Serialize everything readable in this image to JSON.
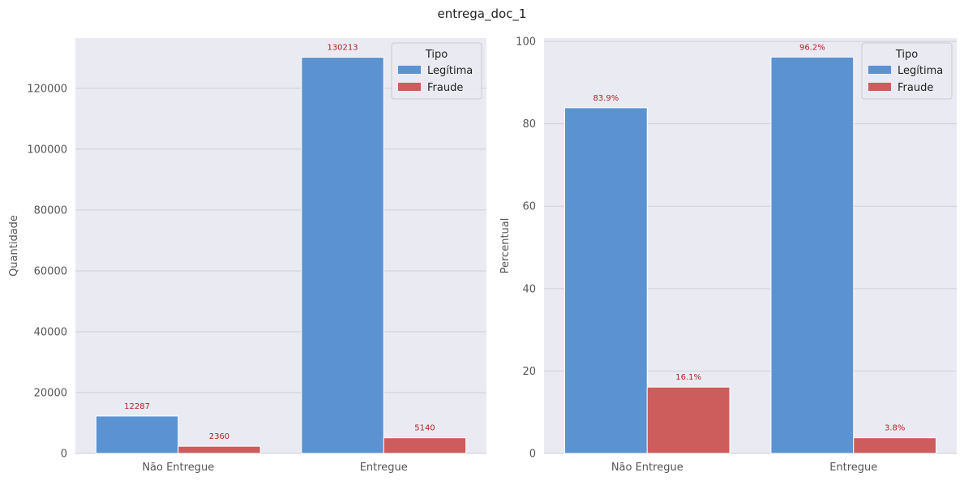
{
  "title": "entrega_doc_1",
  "chart_data": [
    {
      "type": "bar",
      "title": "",
      "xlabel": "",
      "ylabel": "Quantidade",
      "categories": [
        "Não Entregue",
        "Entregue"
      ],
      "series": [
        {
          "name": "Legítima",
          "values": [
            12287,
            130213
          ],
          "labels": [
            "12287",
            "130213"
          ],
          "color": "#5b92d1"
        },
        {
          "name": "Fraude",
          "values": [
            2360,
            5140
          ],
          "labels": [
            "2360",
            "5140"
          ],
          "color": "#cd5c5c"
        }
      ],
      "ylim": [
        0,
        136500
      ],
      "yticks": [
        0,
        20000,
        40000,
        60000,
        80000,
        100000,
        120000
      ],
      "grid": true,
      "legend": {
        "title": "Tipo",
        "position": "top-right"
      }
    },
    {
      "type": "bar",
      "title": "",
      "xlabel": "",
      "ylabel": "Percentual",
      "categories": [
        "Não Entregue",
        "Entregue"
      ],
      "series": [
        {
          "name": "Legítima",
          "values": [
            83.9,
            96.2
          ],
          "labels": [
            "83.9%",
            "96.2%"
          ],
          "color": "#5b92d1"
        },
        {
          "name": "Fraude",
          "values": [
            16.1,
            3.8
          ],
          "labels": [
            "16.1%",
            "3.8%"
          ],
          "color": "#cd5c5c"
        }
      ],
      "ylim": [
        0,
        100.8
      ],
      "yticks": [
        0,
        20,
        40,
        60,
        80,
        100
      ],
      "grid": true,
      "legend": {
        "title": "Tipo",
        "position": "top-right"
      }
    }
  ]
}
